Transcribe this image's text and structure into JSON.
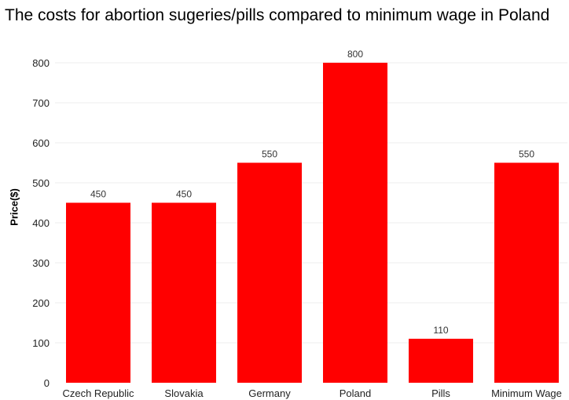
{
  "chart_data": {
    "type": "bar",
    "title": "The costs for abortion sugeries/pills compared to minimum wage in Poland",
    "xlabel": "",
    "ylabel": "Price($)",
    "categories": [
      "Czech Republic",
      "Slovakia",
      "Germany",
      "Poland",
      "Pills",
      "Minimum Wage"
    ],
    "values": [
      450,
      450,
      550,
      800,
      110,
      550
    ],
    "value_labels": [
      "450",
      "450",
      "550",
      "800",
      "110",
      "550"
    ],
    "yticks": [
      0,
      100,
      200,
      300,
      400,
      500,
      600,
      700,
      800
    ],
    "ylim": [
      0,
      860
    ],
    "grid": true,
    "legend": "none",
    "bar_color": "#ff0000",
    "grid_color": "#eeeeee"
  }
}
